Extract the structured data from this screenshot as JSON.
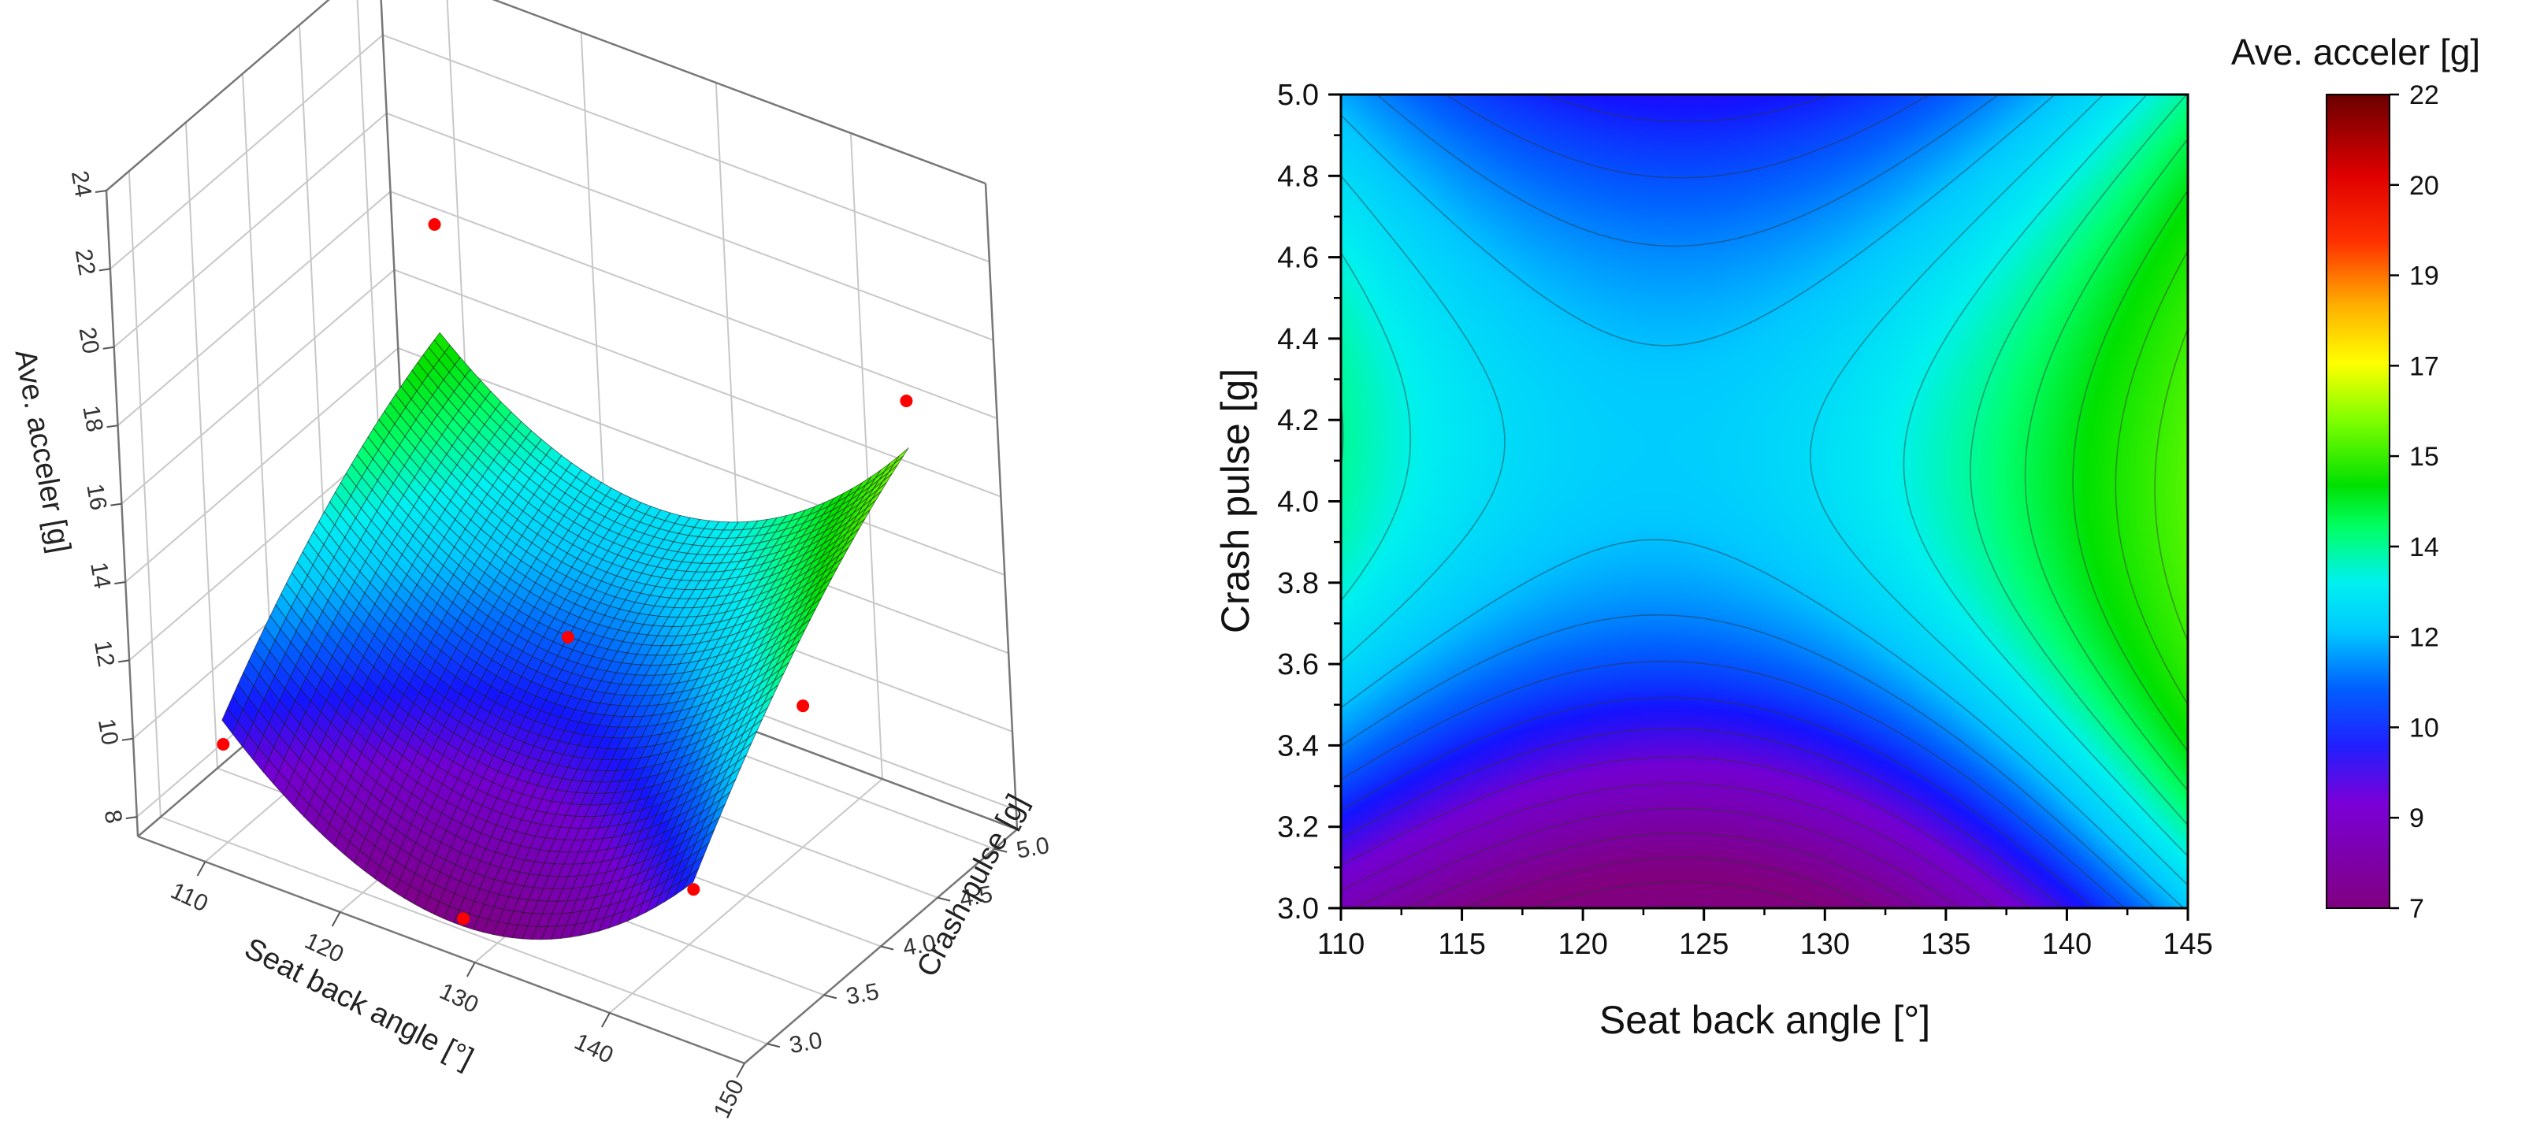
{
  "chart_data": [
    {
      "type": "surface3d",
      "zlabel": "Ave. acceler [g]",
      "xlabel": "Seat back angle [°]",
      "ylabel": "Crash pulse [g]",
      "x_ticks": [
        "110",
        "120",
        "130",
        "140",
        "150"
      ],
      "y_ticks": [
        "3.0",
        "3.5",
        "4.0",
        "4.5",
        "5.0"
      ],
      "z_ticks": [
        "8",
        "10",
        "12",
        "14",
        "16",
        "18",
        "20",
        "22",
        "24"
      ],
      "xlim": [
        105,
        150
      ],
      "ylim": [
        2.8,
        5.2
      ],
      "zlim": [
        7.5,
        24
      ],
      "x_range": [
        110,
        145
      ],
      "y_range": [
        3.0,
        5.0
      ],
      "surface_corners": [
        {
          "x": 110,
          "y": 3.0,
          "z": 10.5
        },
        {
          "x": 110,
          "y": 5.0,
          "z": 16.0
        },
        {
          "x": 145,
          "y": 5.0,
          "z": 17.0
        },
        {
          "x": 145,
          "y": 3.0,
          "z": 11.0
        }
      ],
      "surface_min": {
        "x": 127,
        "y": 3.0,
        "z": 7.5
      },
      "observed_points": [
        {
          "x": 110,
          "y": 3.0,
          "z": 10.0
        },
        {
          "x": 127.5,
          "y": 3.0,
          "z": 7.8
        },
        {
          "x": 145,
          "y": 3.0,
          "z": 10.8
        },
        {
          "x": 127.5,
          "y": 4.0,
          "z": 12.5
        },
        {
          "x": 110,
          "y": 5.0,
          "z": 18.3
        },
        {
          "x": 145,
          "y": 5.0,
          "z": 18.3
        },
        {
          "x": 145,
          "y": 4.0,
          "z": 13.0
        }
      ]
    },
    {
      "type": "contour",
      "xlabel": "Seat back angle [°]",
      "ylabel": "Crash pulse [g]",
      "xlim": [
        110,
        145
      ],
      "ylim": [
        3.0,
        5.0
      ],
      "x_ticks": [
        "110",
        "115",
        "120",
        "125",
        "130",
        "135",
        "140",
        "145"
      ],
      "y_ticks": [
        "3.0",
        "3.2",
        "3.4",
        "3.6",
        "3.8",
        "4.0",
        "4.2",
        "4.4",
        "4.6",
        "4.8",
        "5.0"
      ],
      "colorbar": {
        "title": "Ave. acceler [g]",
        "ticks": [
          "7",
          "9",
          "10",
          "12",
          "14",
          "15",
          "17",
          "19",
          "20",
          "22"
        ],
        "range": [
          7,
          22
        ],
        "colors": [
          "#800080",
          "#7a00d8",
          "#0010ff",
          "#00b8ff",
          "#00f0f0",
          "#00e000",
          "#ffff00",
          "#ff8c00",
          "#ff0000",
          "#b00000",
          "#7a0000"
        ]
      },
      "model_notes": "",
      "saddle": {
        "x": 123,
        "y": 4.1,
        "z": 10.5
      },
      "minimum": {
        "x": 126.5,
        "y": 3.0,
        "z": 7.5
      },
      "corner_values": {
        "x110_y5": 12.0,
        "x145_y5": 12.5,
        "x110_y3": 9.0,
        "x145_y3": 9.0
      }
    }
  ]
}
